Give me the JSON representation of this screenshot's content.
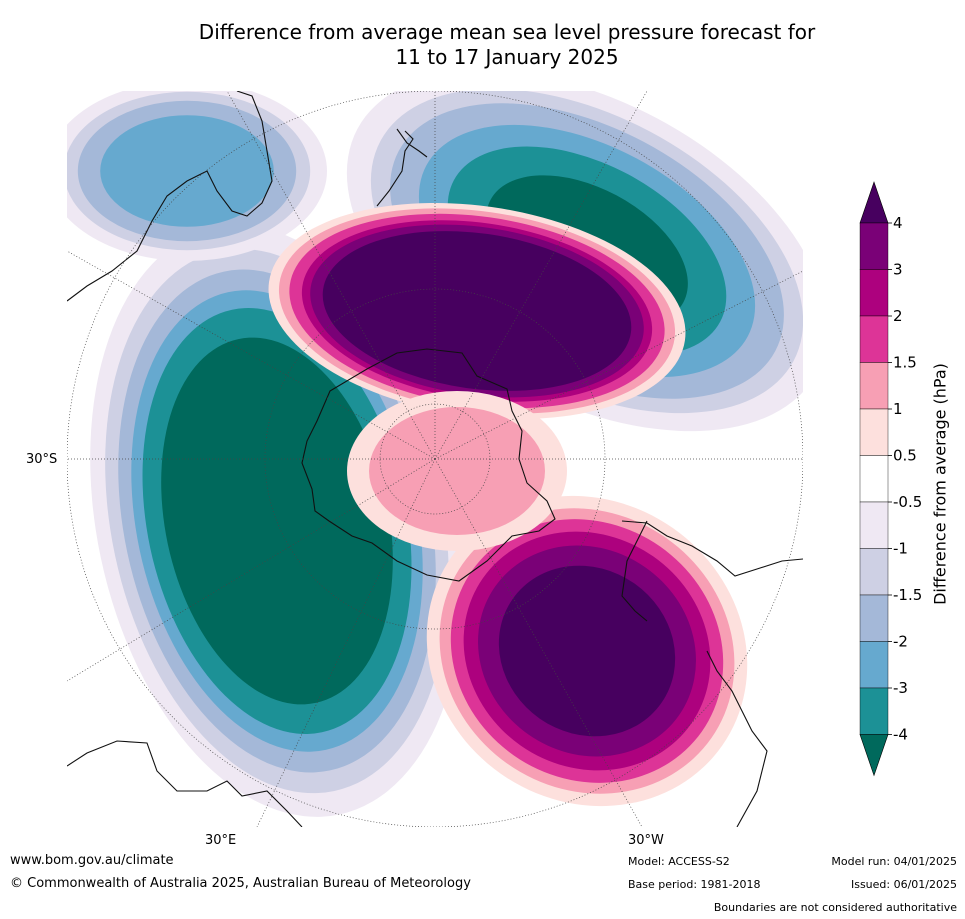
{
  "title_line1": "Difference from average mean sea level pressure forecast for",
  "title_line2": "11 to 17 January 2025",
  "chart_data": {
    "type": "heatmap",
    "projection": "south-polar stereographic",
    "variable": "Difference from average mean sea level pressure",
    "colorbar_label": "Difference from average (hPa)",
    "levels": [
      -4,
      -3,
      -2,
      -1.5,
      -1,
      -0.5,
      0.5,
      1,
      1.5,
      2,
      3,
      4
    ],
    "level_labels": [
      "4",
      "3",
      "2",
      "1.5",
      "1",
      "0.5",
      "-0.5",
      "-1",
      "-1.5",
      "-2",
      "-3",
      "-4"
    ],
    "colors": [
      "#00695c",
      "#1c9196",
      "#66a9cf",
      "#a4b8d8",
      "#ced0e4",
      "#efe8f3",
      "#ffffff",
      "#fde0dd",
      "#f79fb4",
      "#dd3497",
      "#ad017e",
      "#7a0177",
      "#47005f"
    ],
    "extend": "both",
    "lat_tick_label": "30°S",
    "lon_tick_labels": [
      "30°E",
      "30°W"
    ],
    "grid": true,
    "features": [
      {
        "name": "high anomaly south of Australia / Southern Ocean",
        "sign": "positive",
        "peak_above": 4
      },
      {
        "name": "high anomaly over southern South America / South Atlantic",
        "sign": "positive",
        "peak_above": 4
      },
      {
        "name": "low anomaly in the Indian Ocean",
        "sign": "negative",
        "peak_below": -4
      },
      {
        "name": "low anomaly in the South Pacific",
        "sign": "negative",
        "peak_below": -4
      }
    ]
  },
  "footer": {
    "website": "www.bom.gov.au/climate",
    "copyright": "© Commonwealth of Australia 2025, Australian Bureau of Meteorology",
    "model": "Model: ACCESS-S2",
    "base_period": "Base period: 1981-2018",
    "model_run": "Model run: 04/01/2025",
    "issued": "Issued: 06/01/2025",
    "disclaimer": "Boundaries are not considered authoritative"
  }
}
